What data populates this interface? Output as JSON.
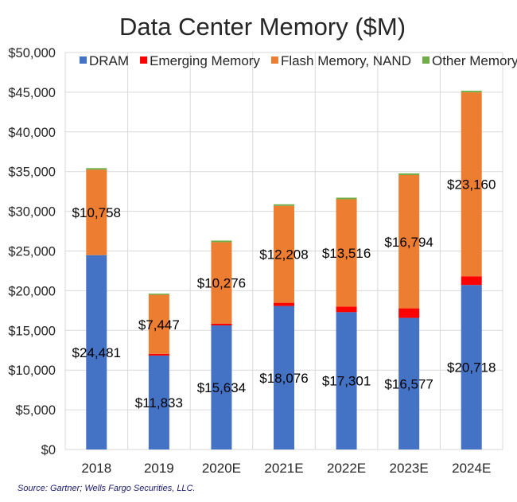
{
  "chart_data": {
    "type": "bar",
    "stacked": true,
    "title": "Data Center Memory ($M)",
    "categories": [
      "2018",
      "2019",
      "2020E",
      "2021E",
      "2022E",
      "2023E",
      "2024E"
    ],
    "series": [
      {
        "name": "DRAM",
        "color": "#4472C4",
        "values": [
          24481,
          11833,
          15634,
          18076,
          17301,
          16577,
          20718
        ]
      },
      {
        "name": "Emerging Memory",
        "color": "#FF0000",
        "values": [
          0,
          200,
          200,
          400,
          700,
          1200,
          1100
        ]
      },
      {
        "name": "Flash Memory, NAND",
        "color": "#ED7D31",
        "values": [
          10758,
          7447,
          10276,
          12208,
          13516,
          16794,
          23160
        ]
      },
      {
        "name": "Other Memory",
        "color": "#70AD47",
        "values": [
          200,
          150,
          200,
          200,
          200,
          200,
          200
        ]
      }
    ],
    "data_labels": {
      "DRAM": [
        "$24,481",
        "$11,833",
        "$15,634",
        "$18,076",
        "$17,301",
        "$16,577",
        "$20,718"
      ],
      "Flash Memory, NAND": [
        "$10,758",
        "$7,447",
        "$10,276",
        "$12,208",
        "$13,516",
        "$16,794",
        "$23,160"
      ]
    },
    "yticks": [
      "$0",
      "$5,000",
      "$10,000",
      "$15,000",
      "$20,000",
      "$25,000",
      "$30,000",
      "$35,000",
      "$40,000",
      "$45,000",
      "$50,000"
    ],
    "ylim": [
      0,
      50000
    ],
    "grid": true,
    "legend_position": "top"
  },
  "source_note": "Source:  Gartner; Wells Fargo Securities,  LLC."
}
